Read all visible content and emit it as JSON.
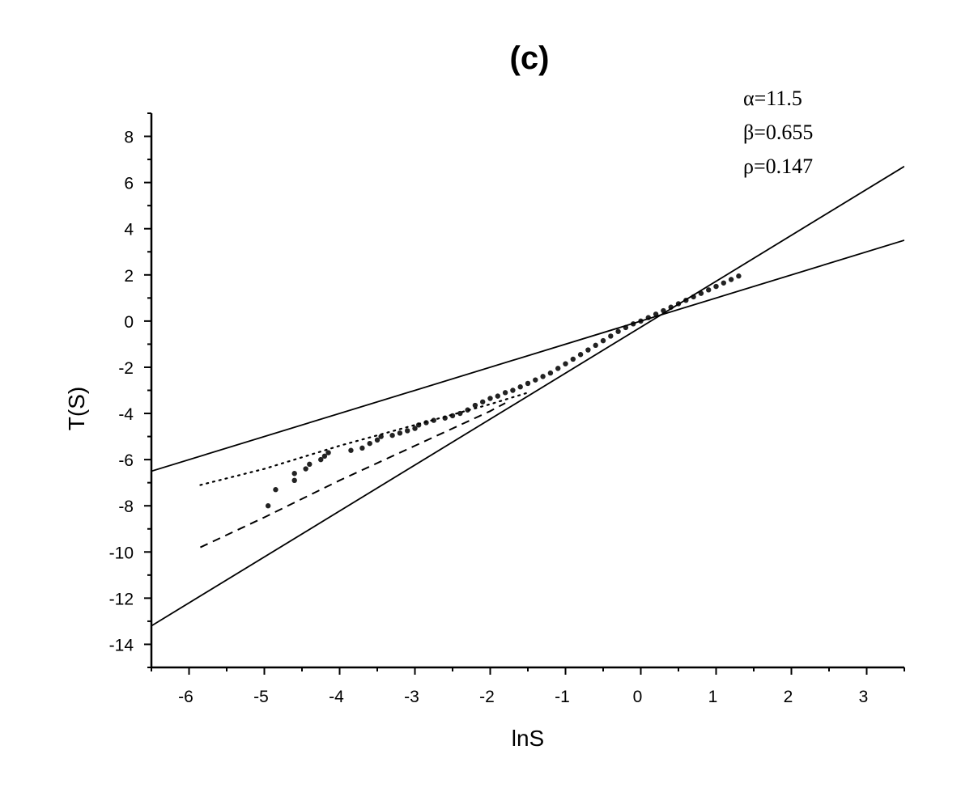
{
  "chart_data": {
    "type": "scatter",
    "title": "(c)",
    "xlabel": "lnS",
    "ylabel": "T(S)",
    "xlim": [
      -6.5,
      3.5
    ],
    "ylim": [
      -15,
      9
    ],
    "x_ticks": [
      -6,
      -5,
      -4,
      -3,
      -2,
      -1,
      0,
      1,
      2,
      3
    ],
    "y_ticks": [
      -14,
      -12,
      -10,
      -8,
      -6,
      -4,
      -2,
      0,
      2,
      4,
      6,
      8
    ],
    "grid": false,
    "annotations": [
      "α=11.5",
      "β=0.655",
      "ρ=0.147"
    ],
    "series": [
      {
        "style": "points",
        "points": [
          [
            -4.95,
            -8.0
          ],
          [
            -4.85,
            -7.3
          ],
          [
            -4.6,
            -6.9
          ],
          [
            -4.6,
            -6.6
          ],
          [
            -4.45,
            -6.4
          ],
          [
            -4.4,
            -6.2
          ],
          [
            -4.25,
            -6.0
          ],
          [
            -4.2,
            -5.85
          ],
          [
            -4.15,
            -5.7
          ],
          [
            -3.85,
            -5.6
          ],
          [
            -3.7,
            -5.5
          ],
          [
            -3.6,
            -5.3
          ],
          [
            -3.5,
            -5.15
          ],
          [
            -3.45,
            -5.0
          ],
          [
            -3.3,
            -4.95
          ],
          [
            -3.2,
            -4.85
          ],
          [
            -3.1,
            -4.75
          ],
          [
            -3.0,
            -4.65
          ],
          [
            -2.95,
            -4.5
          ],
          [
            -2.85,
            -4.4
          ],
          [
            -2.75,
            -4.3
          ],
          [
            -2.6,
            -4.2
          ],
          [
            -2.5,
            -4.1
          ],
          [
            -2.4,
            -4.0
          ],
          [
            -2.3,
            -3.85
          ],
          [
            -2.2,
            -3.65
          ],
          [
            -2.1,
            -3.5
          ],
          [
            -2.0,
            -3.35
          ],
          [
            -1.9,
            -3.25
          ],
          [
            -1.8,
            -3.1
          ],
          [
            -1.7,
            -3.0
          ],
          [
            -1.6,
            -2.85
          ],
          [
            -1.5,
            -2.7
          ],
          [
            -1.4,
            -2.55
          ],
          [
            -1.3,
            -2.4
          ],
          [
            -1.2,
            -2.25
          ],
          [
            -1.1,
            -2.05
          ],
          [
            -1.0,
            -1.85
          ],
          [
            -0.9,
            -1.65
          ],
          [
            -0.8,
            -1.45
          ],
          [
            -0.7,
            -1.25
          ],
          [
            -0.6,
            -1.05
          ],
          [
            -0.5,
            -0.85
          ],
          [
            -0.4,
            -0.65
          ],
          [
            -0.3,
            -0.45
          ],
          [
            -0.2,
            -0.28
          ],
          [
            -0.1,
            -0.12
          ],
          [
            0.0,
            0.0
          ],
          [
            0.1,
            0.15
          ],
          [
            0.2,
            0.3
          ],
          [
            0.3,
            0.45
          ],
          [
            0.4,
            0.6
          ],
          [
            0.5,
            0.75
          ],
          [
            0.6,
            0.9
          ],
          [
            0.7,
            1.05
          ],
          [
            0.8,
            1.2
          ],
          [
            0.9,
            1.35
          ],
          [
            1.0,
            1.5
          ],
          [
            1.1,
            1.65
          ],
          [
            1.2,
            1.8
          ],
          [
            1.3,
            1.95
          ]
        ]
      },
      {
        "style": "solid",
        "x": [
          -6.5,
          3.5
        ],
        "y": [
          -13.2,
          6.7
        ]
      },
      {
        "style": "solid",
        "x": [
          -6.5,
          3.5
        ],
        "y": [
          -6.5,
          3.5
        ]
      },
      {
        "style": "dotted",
        "x": [
          -5.85,
          -5.0,
          -4.0,
          -3.0,
          -2.0,
          -1.5
        ],
        "y": [
          -7.1,
          -6.4,
          -5.4,
          -4.5,
          -3.6,
          -3.1
        ]
      },
      {
        "style": "dashed",
        "x": [
          -5.85,
          -5.0,
          -4.0,
          -3.0,
          -2.0,
          -1.8
        ],
        "y": [
          -9.8,
          -8.5,
          -6.9,
          -5.4,
          -3.9,
          -3.55
        ]
      }
    ]
  }
}
